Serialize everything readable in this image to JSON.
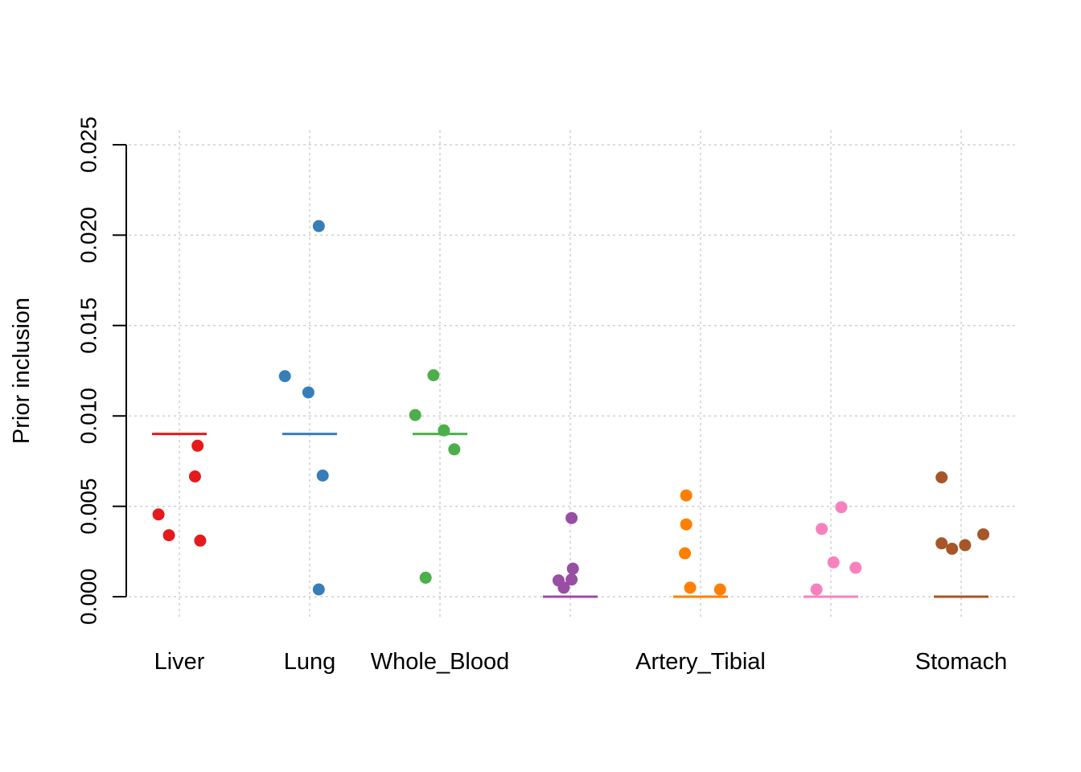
{
  "chart_data": {
    "type": "scatter",
    "title": "",
    "xlabel": "",
    "ylabel": "Prior inclusion",
    "ylim": [
      0,
      0.025
    ],
    "yticks": [
      "0.000",
      "0.005",
      "0.010",
      "0.015",
      "0.020",
      "0.025"
    ],
    "grid": true,
    "categories": [
      {
        "label": "Liver",
        "color": "#E41A1C",
        "mean": 0.009,
        "points": [
          [
            -0.16,
            0.00455
          ],
          [
            -0.08,
            0.0034
          ],
          [
            0.12,
            0.00665
          ],
          [
            0.14,
            0.00835
          ],
          [
            0.16,
            0.0031
          ]
        ]
      },
      {
        "label": "Lung",
        "color": "#377EB8",
        "mean": 0.009,
        "points": [
          [
            -0.19,
            0.0122
          ],
          [
            -0.01,
            0.0113
          ],
          [
            0.07,
            0.0205
          ],
          [
            0.07,
            0.0004
          ],
          [
            0.1,
            0.0067
          ]
        ]
      },
      {
        "label": "Whole_Blood",
        "color": "#4DAF4A",
        "mean": 0.009,
        "points": [
          [
            -0.19,
            0.01005
          ],
          [
            -0.11,
            0.00105
          ],
          [
            -0.05,
            0.01225
          ],
          [
            0.03,
            0.0092
          ],
          [
            0.11,
            0.00815
          ]
        ]
      },
      {
        "label": "",
        "color": "#984EA3",
        "mean": 0.0,
        "points": [
          [
            -0.09,
            0.0009
          ],
          [
            -0.05,
            0.0005
          ],
          [
            0.01,
            0.00435
          ],
          [
            0.01,
            0.00095
          ],
          [
            0.02,
            0.00155
          ]
        ]
      },
      {
        "label": "Artery_Tibial",
        "color": "#FF7F00",
        "mean": 0.0,
        "points": [
          [
            -0.12,
            0.0024
          ],
          [
            -0.11,
            0.004
          ],
          [
            -0.11,
            0.0056
          ],
          [
            -0.08,
            0.0005
          ],
          [
            0.15,
            0.0004
          ]
        ]
      },
      {
        "label": "",
        "color": "#F781BF",
        "mean": 0.0,
        "points": [
          [
            -0.11,
            0.0004
          ],
          [
            -0.07,
            0.00375
          ],
          [
            0.02,
            0.0019
          ],
          [
            0.08,
            0.00495
          ],
          [
            0.19,
            0.0016
          ]
        ]
      },
      {
        "label": "Stomach",
        "color": "#A65628",
        "mean": 0.0,
        "points": [
          [
            -0.15,
            0.0066
          ],
          [
            -0.15,
            0.00295
          ],
          [
            -0.07,
            0.00265
          ],
          [
            0.03,
            0.00285
          ],
          [
            0.17,
            0.00345
          ]
        ]
      }
    ]
  }
}
